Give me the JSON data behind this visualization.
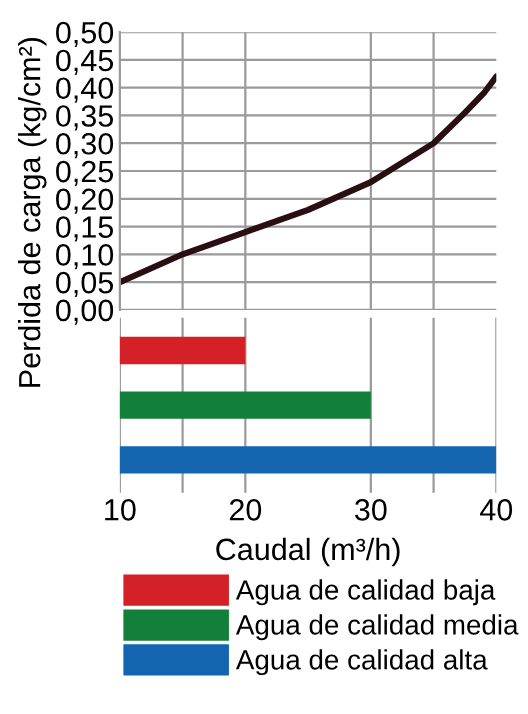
{
  "chart_data": [
    {
      "type": "line",
      "ylabel": "Perdida de carga (kg/cm²)",
      "x": [
        10,
        15,
        20,
        25,
        30,
        35,
        37.5,
        39,
        40
      ],
      "series": [
        {
          "color": "#2a0f12",
          "values": [
            0.05,
            0.1,
            0.14,
            0.18,
            0.23,
            0.3,
            0.355,
            0.39,
            0.42
          ]
        }
      ],
      "xlim": [
        10,
        40
      ],
      "xticks": [
        15,
        20,
        30,
        35
      ],
      "ylim": [
        0,
        0.5
      ],
      "yticks": [
        {
          "value": 0,
          "label": "0,00"
        },
        {
          "value": 0.05,
          "label": "0,05"
        },
        {
          "value": 0.1,
          "label": "0,10"
        },
        {
          "value": 0.15,
          "label": "0,15"
        },
        {
          "value": 0.2,
          "label": "0,20"
        },
        {
          "value": 0.25,
          "label": "0,25"
        },
        {
          "value": 0.3,
          "label": "0,30"
        },
        {
          "value": 0.35,
          "label": "0,35"
        },
        {
          "value": 0.4,
          "label": "0,40"
        },
        {
          "value": 0.45,
          "label": "0,45"
        },
        {
          "value": 0.5,
          "label": "0,50"
        }
      ],
      "grid": true,
      "tick_labels": "y",
      "marker": "none",
      "line_style": "solid"
    },
    {
      "type": "bar",
      "orientation": "horizontal",
      "xlabel": "Caudal (m³/h)",
      "categories": [
        null,
        null,
        null
      ],
      "series": [
        {
          "name": "Agua de calidad baja",
          "color": "#d42027",
          "values": [
            20,
            null,
            null
          ]
        },
        {
          "name": "Agua de calidad media",
          "color": "#13803a",
          "values": [
            null,
            30,
            null
          ]
        },
        {
          "name": "Agua de calidad alta",
          "color": "#1465b0",
          "values": [
            null,
            null,
            40
          ]
        }
      ],
      "xlim": [
        10,
        40
      ],
      "xticks": [
        10,
        {
          "value": 15,
          "label": null
        },
        20,
        30,
        {
          "value": 35,
          "label": null
        },
        40
      ],
      "grid": "x",
      "legend": "bottom",
      "tick_labels": "x"
    }
  ]
}
